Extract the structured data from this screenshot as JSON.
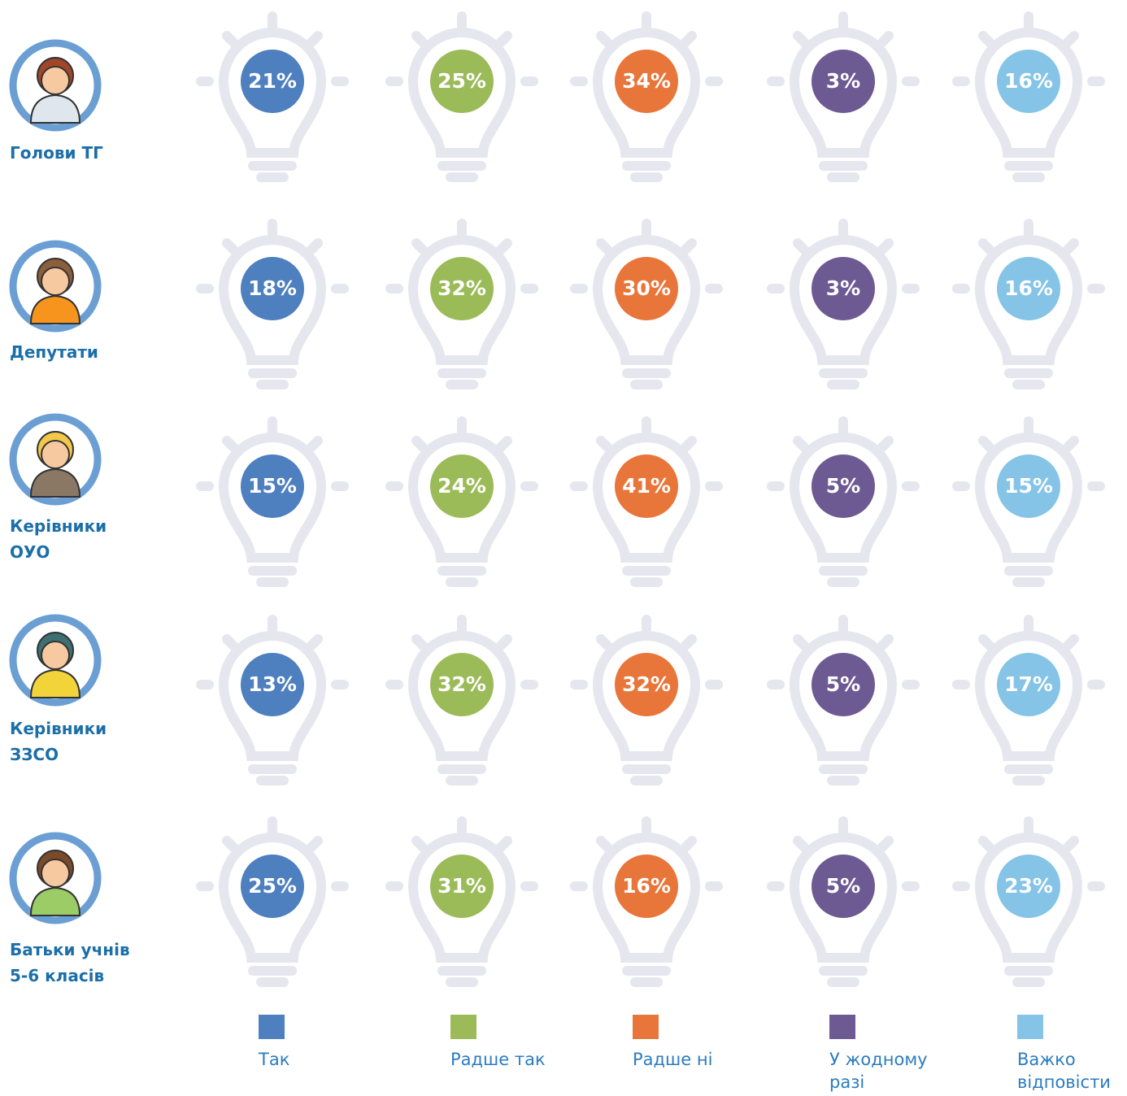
{
  "groups": [
    {
      "label": "Голови ТГ",
      "cells": [
        "21%",
        "25%",
        "34%",
        "3%",
        "16%"
      ]
    },
    {
      "label": "Депутати",
      "cells": [
        "18%",
        "32%",
        "30%",
        "3%",
        "16%"
      ]
    },
    {
      "label": "Керівники\nОУО",
      "cells": [
        "15%",
        "24%",
        "41%",
        "5%",
        "15%"
      ]
    },
    {
      "label": "Керівники\nЗЗСО",
      "cells": [
        "13%",
        "32%",
        "32%",
        "5%",
        "17%"
      ]
    },
    {
      "label": "Батьки учнів\n5-6 класів",
      "cells": [
        "25%",
        "31%",
        "16%",
        "5%",
        "23%"
      ]
    }
  ],
  "legend": [
    {
      "label": "Так",
      "color": "#4e7fbf"
    },
    {
      "label": "Радше так",
      "color": "#9bbb59"
    },
    {
      "label": "Радше ні",
      "color": "#e8763a"
    },
    {
      "label": "У жодному\nразі",
      "color": "#6e5a93"
    },
    {
      "label": "Важко\nвідповісти",
      "color": "#85c4e6"
    }
  ]
}
